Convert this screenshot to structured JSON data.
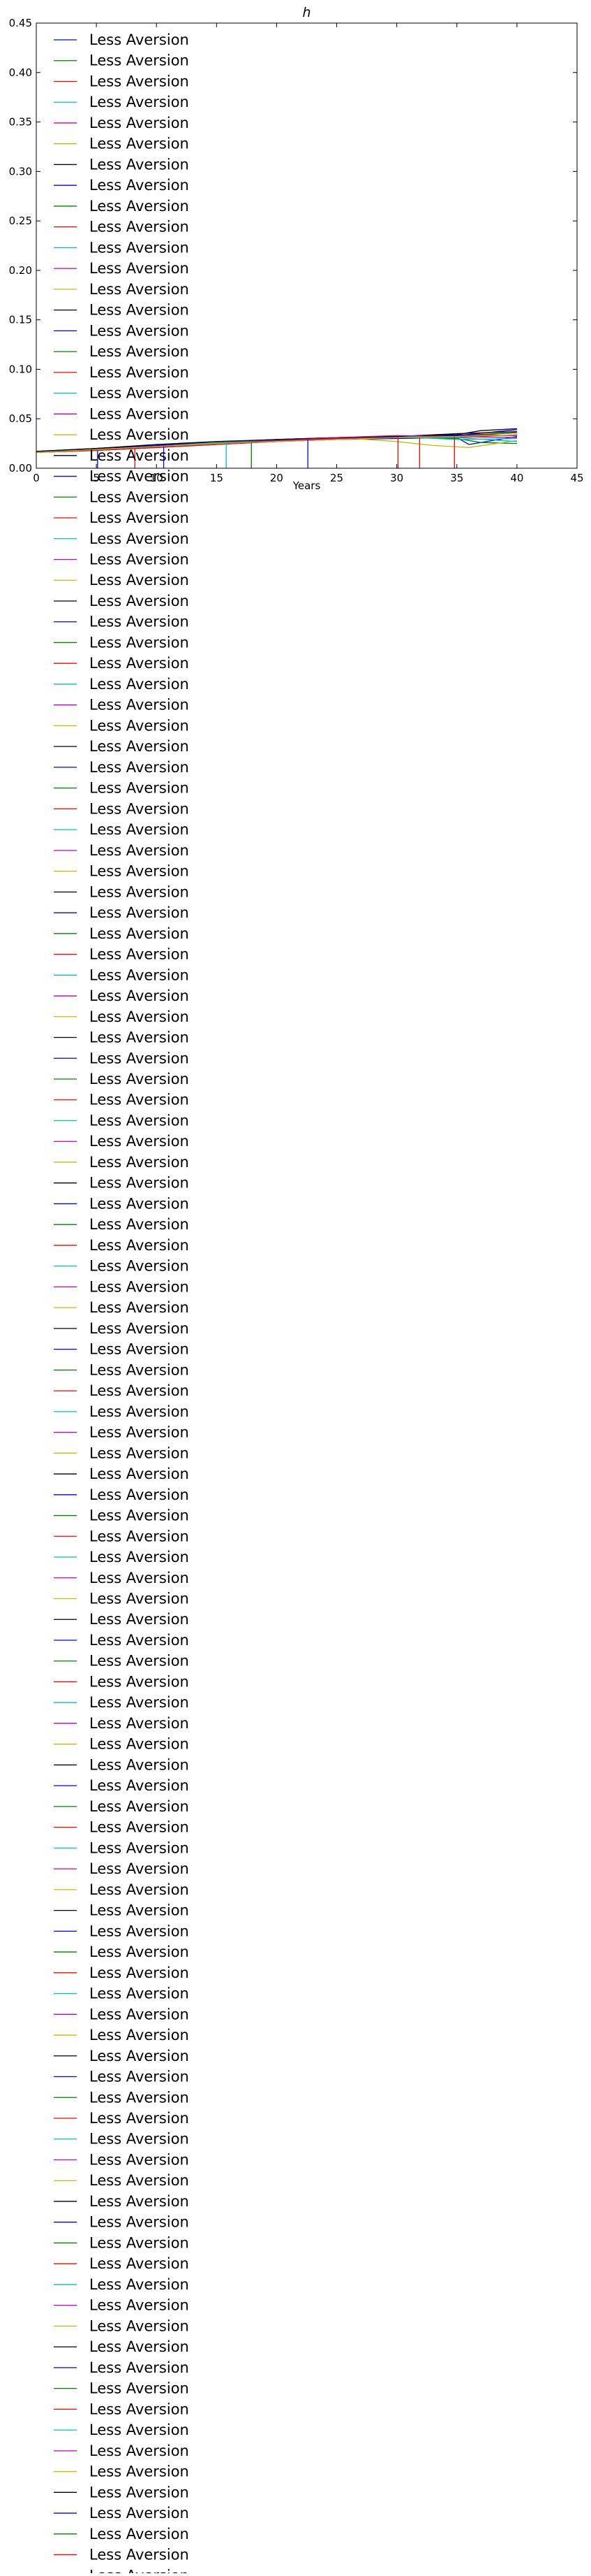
{
  "chart_data": {
    "type": "line",
    "title": "h",
    "xlabel": "Years",
    "ylabel": "",
    "xlim": [
      0,
      45
    ],
    "ylim": [
      0,
      0.45
    ],
    "xticks": [
      "0",
      "5",
      "10",
      "15",
      "20",
      "25",
      "30",
      "35",
      "40",
      "45"
    ],
    "yticks": [
      "0.00",
      "0.05",
      "0.10",
      "0.15",
      "0.20",
      "0.25",
      "0.30",
      "0.35",
      "0.40",
      "0.45"
    ],
    "grid": false,
    "legend": {
      "placement": "top-left, overflowing below the axes",
      "label": "Less Aversion",
      "count": 126
    },
    "colors": [
      "#0000ff",
      "#008000",
      "#ff0000",
      "#00bfbf",
      "#bf00bf",
      "#bfbf00",
      "#000000"
    ],
    "series": [
      {
        "color": "#0000ff",
        "x": [
          0,
          5,
          10,
          15,
          20,
          25,
          30,
          35,
          36,
          40
        ],
        "y": [
          0.016,
          0.018,
          0.021,
          0.024,
          0.027,
          0.029,
          0.03,
          0.031,
          0.024,
          0.032
        ]
      },
      {
        "color": "#008000",
        "x": [
          0,
          5,
          10,
          15,
          20,
          25,
          30,
          35,
          37,
          40
        ],
        "y": [
          0.016,
          0.019,
          0.022,
          0.025,
          0.028,
          0.031,
          0.031,
          0.03,
          0.026,
          0.025
        ]
      },
      {
        "color": "#ff0000",
        "x": [
          0,
          5,
          10,
          15,
          20,
          25,
          30,
          35,
          40
        ],
        "y": [
          0.016,
          0.019,
          0.023,
          0.026,
          0.029,
          0.031,
          0.032,
          0.033,
          0.036
        ]
      },
      {
        "color": "#00bfbf",
        "x": [
          0,
          5,
          10,
          15,
          20,
          25,
          30,
          35,
          40
        ],
        "y": [
          0.017,
          0.02,
          0.023,
          0.026,
          0.028,
          0.03,
          0.032,
          0.029,
          0.03
        ]
      },
      {
        "color": "#bf00bf",
        "x": [
          0,
          5,
          10,
          15,
          20,
          25,
          30,
          35,
          40
        ],
        "y": [
          0.016,
          0.019,
          0.022,
          0.025,
          0.028,
          0.03,
          0.031,
          0.034,
          0.033
        ]
      },
      {
        "color": "#bfbf00",
        "x": [
          0,
          5,
          10,
          15,
          20,
          25,
          30,
          33,
          36,
          40
        ],
        "y": [
          0.016,
          0.019,
          0.022,
          0.026,
          0.029,
          0.031,
          0.027,
          0.023,
          0.021,
          0.028
        ]
      },
      {
        "color": "#000000",
        "x": [
          0,
          5,
          10,
          15,
          20,
          25,
          30,
          35,
          37,
          40
        ],
        "y": [
          0.016,
          0.02,
          0.023,
          0.026,
          0.029,
          0.031,
          0.032,
          0.034,
          0.038,
          0.04
        ]
      },
      {
        "color": "#0000ff",
        "x": [
          0,
          5,
          10,
          15,
          20,
          25,
          30,
          35,
          40
        ],
        "y": [
          0.017,
          0.02,
          0.023,
          0.026,
          0.028,
          0.03,
          0.031,
          0.033,
          0.039
        ]
      },
      {
        "color": "#008000",
        "x": [
          0,
          5,
          10,
          15,
          20,
          25,
          30,
          35,
          40
        ],
        "y": [
          0.016,
          0.019,
          0.022,
          0.025,
          0.027,
          0.029,
          0.031,
          0.032,
          0.036
        ]
      },
      {
        "color": "#ff0000",
        "x": [
          0,
          5,
          10,
          15,
          20,
          25,
          30,
          35,
          40
        ],
        "y": [
          0.016,
          0.018,
          0.021,
          0.024,
          0.027,
          0.03,
          0.032,
          0.031,
          0.034
        ]
      },
      {
        "color": "#00bfbf",
        "x": [
          0,
          5,
          10,
          15,
          20,
          25,
          30,
          35,
          40
        ],
        "y": [
          0.016,
          0.019,
          0.022,
          0.026,
          0.029,
          0.031,
          0.032,
          0.031,
          0.027
        ]
      },
      {
        "color": "#000000",
        "x": [
          0,
          5,
          10,
          15,
          20,
          25,
          30,
          35,
          40
        ],
        "y": [
          0.017,
          0.02,
          0.024,
          0.027,
          0.029,
          0.031,
          0.032,
          0.035,
          0.037
        ]
      },
      {
        "color": "#bf00bf",
        "x": [
          0,
          5,
          10,
          15,
          20,
          25,
          30,
          35,
          40
        ],
        "y": [
          0.016,
          0.019,
          0.022,
          0.025,
          0.028,
          0.031,
          0.033,
          0.032,
          0.031
        ]
      },
      {
        "color": "#bfbf00",
        "x": [
          0,
          5,
          10,
          15,
          20,
          25,
          30,
          35,
          40
        ],
        "y": [
          0.016,
          0.019,
          0.022,
          0.025,
          0.027,
          0.029,
          0.031,
          0.032,
          0.034
        ]
      }
    ],
    "drops": [
      {
        "color": "#0000ff",
        "x": 5.1,
        "y": 0.018
      },
      {
        "color": "#ff0000",
        "x": 8.2,
        "y": 0.02
      },
      {
        "color": "#0000ff",
        "x": 10.6,
        "y": 0.022
      },
      {
        "color": "#00bfbf",
        "x": 15.8,
        "y": 0.025
      },
      {
        "color": "#008000",
        "x": 17.9,
        "y": 0.026
      },
      {
        "color": "#0000ff",
        "x": 22.6,
        "y": 0.029
      },
      {
        "color": "#ff0000",
        "x": 30.1,
        "y": 0.031
      },
      {
        "color": "#ff0000",
        "x": 31.9,
        "y": 0.031
      },
      {
        "color": "#ff0000",
        "x": 34.8,
        "y": 0.032
      }
    ]
  }
}
